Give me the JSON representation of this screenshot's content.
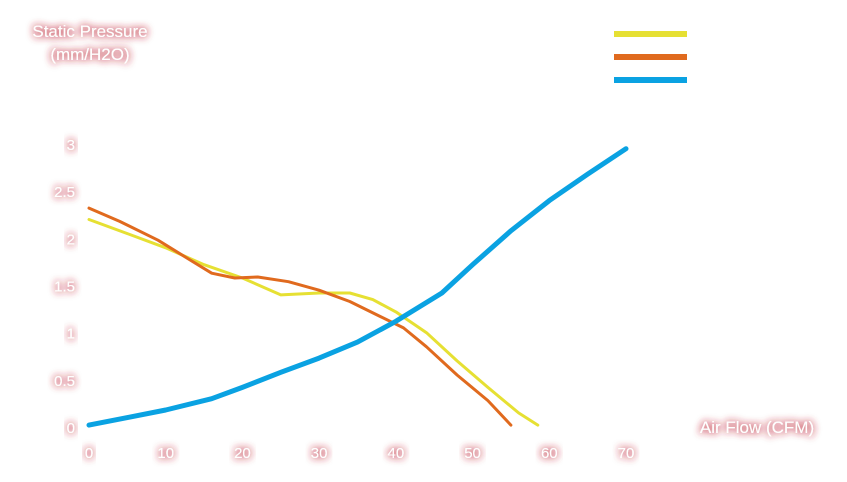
{
  "chart_data": {
    "type": "line",
    "ylabel_lines": [
      "Static Pressure",
      "(mm/H2O)"
    ],
    "xlabel": "Air Flow (CFM)",
    "xlim": [
      0,
      70
    ],
    "ylim": [
      0,
      3.5
    ],
    "x_ticks": [
      "0",
      "10",
      "20",
      "30",
      "40",
      "50",
      "60",
      "70"
    ],
    "y_ticks": [
      "0",
      "0.5",
      "1",
      "1.5",
      "2",
      "2.5",
      "3"
    ],
    "grid": false,
    "legend_position": "top-right",
    "series": [
      {
        "color": "#e6e033",
        "points": [
          [
            0,
            2.2
          ],
          [
            5,
            2.05
          ],
          [
            10,
            1.9
          ],
          [
            15,
            1.72
          ],
          [
            20,
            1.58
          ],
          [
            25,
            1.4
          ],
          [
            30,
            1.42
          ],
          [
            34,
            1.42
          ],
          [
            37,
            1.35
          ],
          [
            40,
            1.22
          ],
          [
            44,
            1.0
          ],
          [
            48,
            0.7
          ],
          [
            52,
            0.42
          ],
          [
            56,
            0.15
          ],
          [
            58.5,
            0.02
          ]
        ]
      },
      {
        "color": "#e06a1e",
        "points": [
          [
            0,
            2.32
          ],
          [
            4,
            2.18
          ],
          [
            9,
            1.98
          ],
          [
            13,
            1.78
          ],
          [
            16,
            1.63
          ],
          [
            19,
            1.58
          ],
          [
            22,
            1.59
          ],
          [
            26,
            1.54
          ],
          [
            30,
            1.45
          ],
          [
            34,
            1.33
          ],
          [
            38,
            1.17
          ],
          [
            41,
            1.05
          ],
          [
            44,
            0.85
          ],
          [
            48,
            0.55
          ],
          [
            52,
            0.28
          ],
          [
            55,
            0.02
          ]
        ]
      },
      {
        "color": "#0aa2e2",
        "points": [
          [
            0,
            0.02
          ],
          [
            5,
            0.1
          ],
          [
            10,
            0.18
          ],
          [
            16,
            0.3
          ],
          [
            20,
            0.42
          ],
          [
            25,
            0.58
          ],
          [
            30,
            0.73
          ],
          [
            35,
            0.9
          ],
          [
            40,
            1.12
          ],
          [
            46,
            1.42
          ],
          [
            50,
            1.72
          ],
          [
            55,
            2.08
          ],
          [
            60,
            2.4
          ],
          [
            65,
            2.68
          ],
          [
            70,
            2.95
          ]
        ]
      }
    ]
  }
}
